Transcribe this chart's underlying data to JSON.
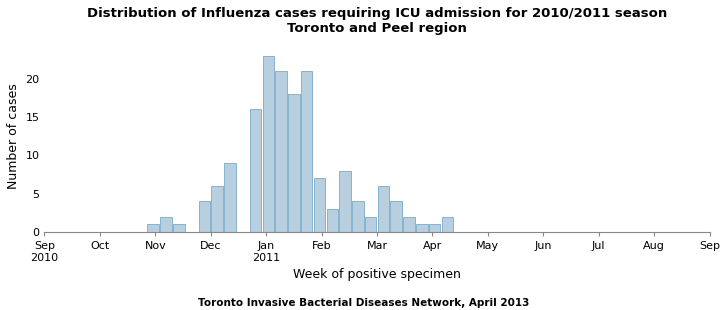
{
  "title_line1": "Distribution of Influenza cases requiring ICU admission for 2010/2011 season",
  "title_line2": "Toronto and Peel region",
  "xlabel": "Week of positive specimen",
  "ylabel": "Number of cases",
  "footnote": "Toronto Invasive Bacterial Diseases Network, April 2013",
  "bar_color": "#b8cfe0",
  "bar_edge_color": "#7aaac8",
  "background_color": "#ffffff",
  "ylim": [
    0,
    25
  ],
  "yticks": [
    0,
    5,
    10,
    15,
    20
  ],
  "month_labels": [
    "Sep\n2010",
    "Oct",
    "Nov",
    "Dec",
    "Jan\n2011",
    "Feb",
    "Mar",
    "Apr",
    "May",
    "Jun",
    "Jul",
    "Aug",
    "Sep"
  ],
  "bar_heights": [
    1,
    2,
    1,
    4,
    6,
    9,
    16,
    23,
    21,
    18,
    21,
    7,
    3,
    8,
    4,
    2,
    6,
    4,
    2,
    1,
    1,
    2
  ],
  "title_fontsize": 9.5,
  "axis_fontsize": 9,
  "tick_fontsize": 8,
  "footnote_fontsize": 7.5
}
